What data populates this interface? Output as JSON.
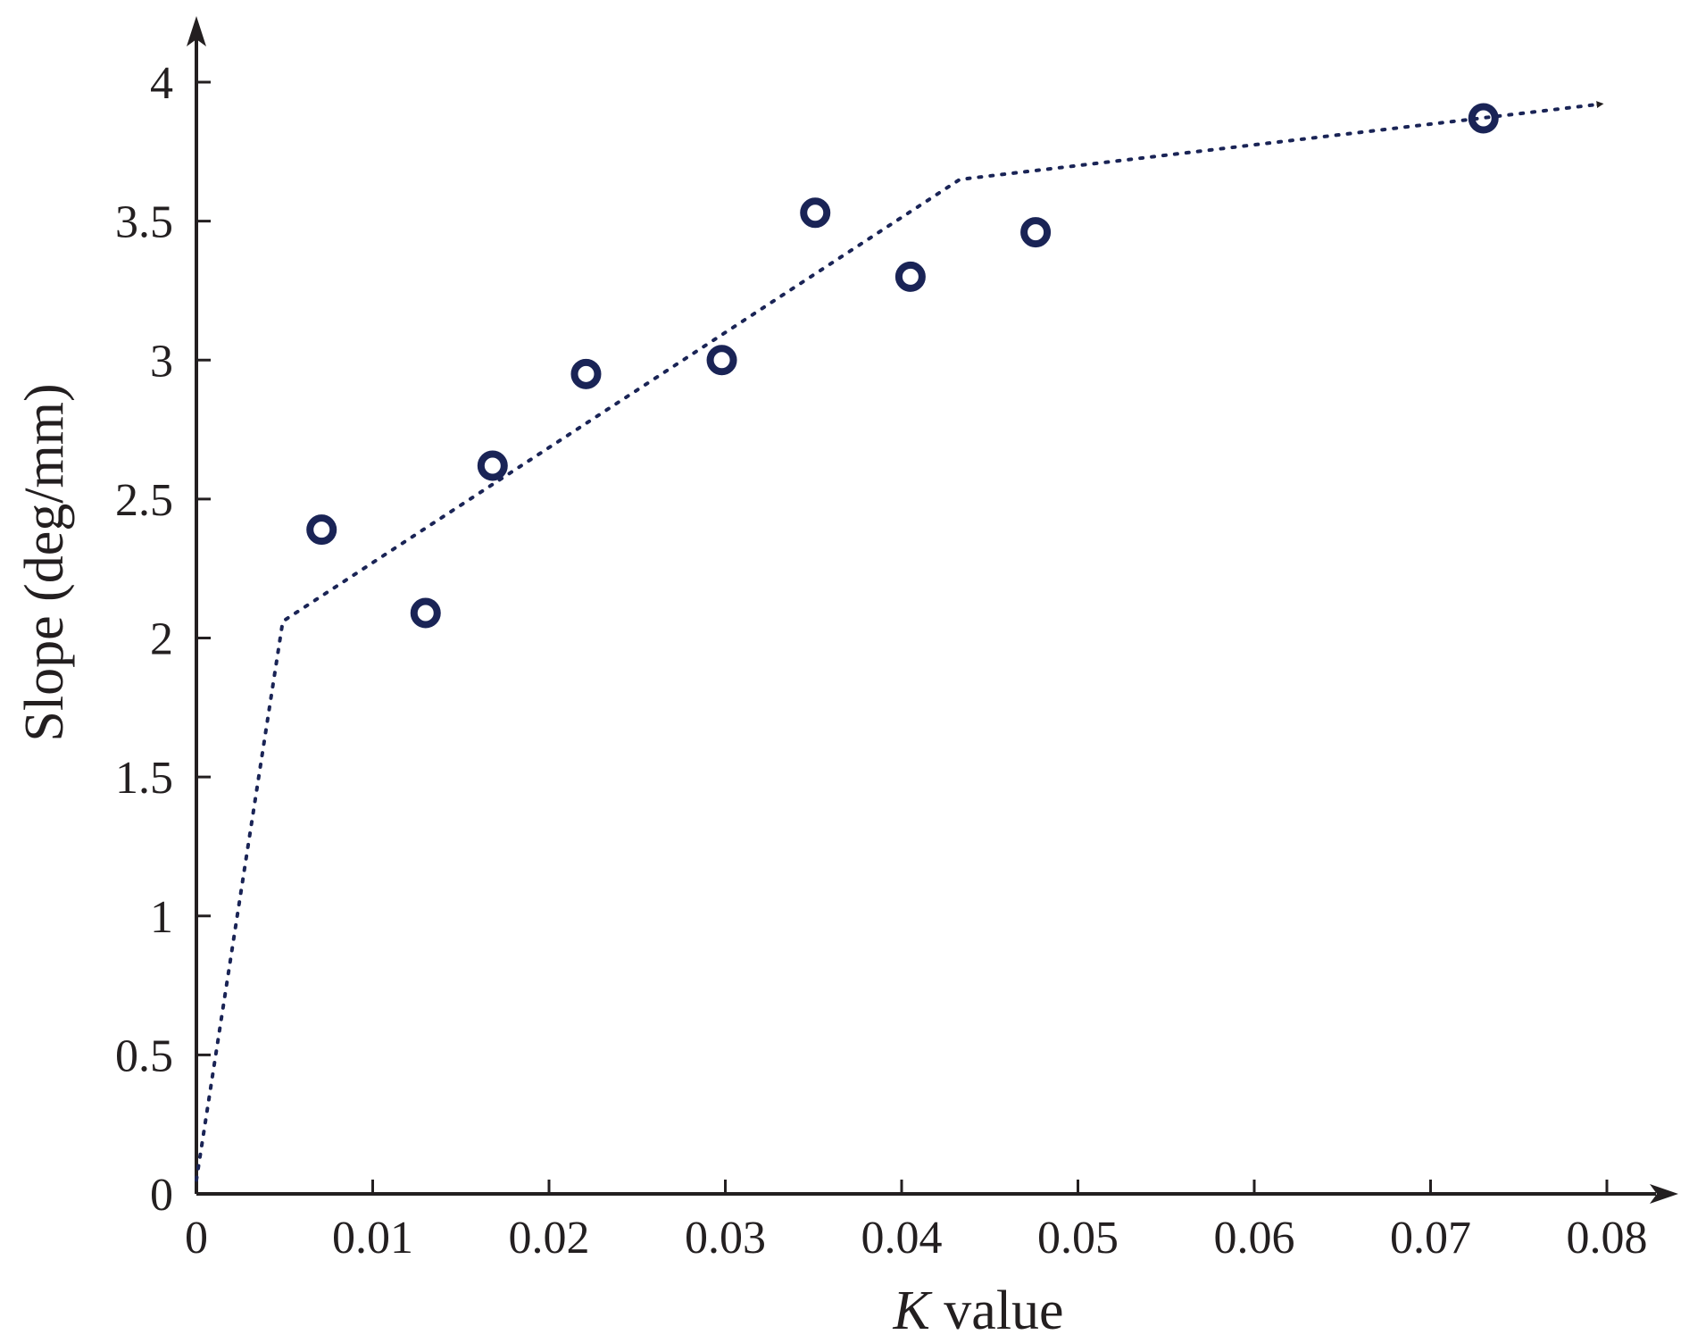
{
  "chart_data": {
    "type": "scatter",
    "xlabel_italic": "K",
    "xlabel_rest": " value",
    "ylabel": "Slope (deg/mm)",
    "xlim": [
      0,
      0.08
    ],
    "ylim": [
      0,
      4
    ],
    "xticks": [
      0,
      0.01,
      0.02,
      0.03,
      0.04,
      0.05,
      0.06,
      0.07,
      0.08
    ],
    "xtick_labels": [
      "0",
      "0.01",
      "0.02",
      "0.03",
      "0.04",
      "0.05",
      "0.06",
      "0.07",
      "0.08"
    ],
    "yticks": [
      0,
      0.5,
      1,
      1.5,
      2,
      2.5,
      3,
      3.5,
      4
    ],
    "ytick_labels": [
      "0",
      "0.5",
      "1",
      "1.5",
      "2",
      "2.5",
      "3",
      "3.5",
      "4"
    ],
    "grid": false,
    "points": {
      "x": [
        0.0071,
        0.013,
        0.0168,
        0.0221,
        0.0298,
        0.0351,
        0.0405,
        0.0476,
        0.073
      ],
      "y": [
        2.39,
        2.09,
        2.62,
        2.95,
        3.0,
        3.53,
        3.3,
        3.46,
        3.87
      ]
    },
    "trend_line": {
      "style": "dotted",
      "arrow_end": true,
      "x": [
        0,
        0.0049,
        0.0433,
        0.0795
      ],
      "y": [
        0.05,
        2.06,
        3.65,
        3.92
      ]
    },
    "colors": {
      "marker": "#1a2456",
      "trend": "#1a2456",
      "axis": "#231f20"
    }
  }
}
